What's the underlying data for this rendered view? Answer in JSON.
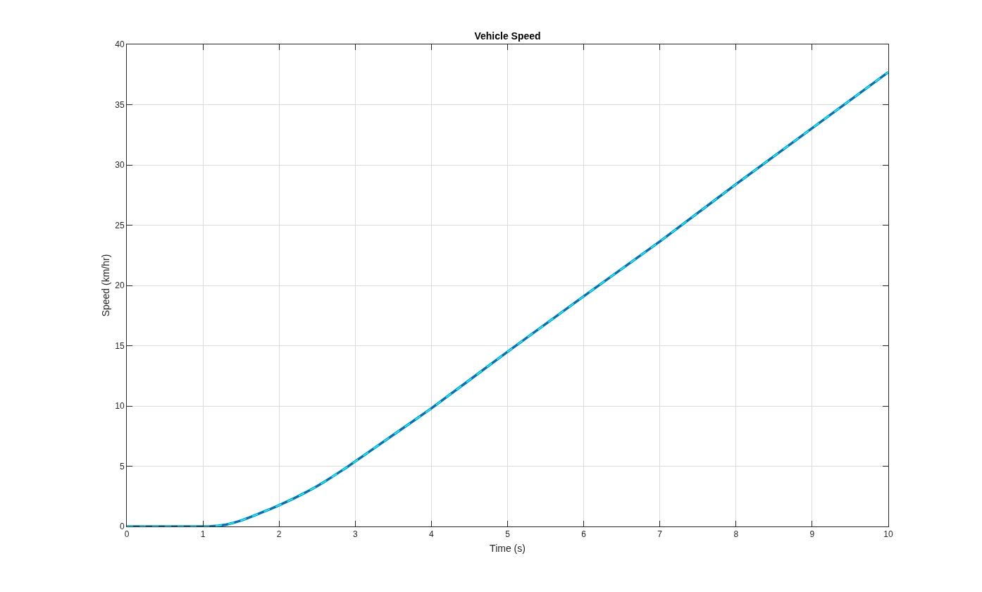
{
  "chart_data": {
    "type": "line",
    "title": "Vehicle Speed",
    "xlabel": "Time (s)",
    "ylabel": "Speed (km/hr)",
    "x": [
      0,
      0.5,
      1.0,
      1.07,
      1.1,
      1.2,
      1.3,
      1.4,
      1.5,
      1.6,
      1.7,
      1.8,
      1.9,
      2.0,
      2.1,
      2.2,
      2.3,
      2.4,
      2.5,
      2.6,
      2.7,
      2.8,
      2.9,
      3.0,
      3.25,
      3.5,
      3.75,
      4.0,
      4.5,
      5.0,
      6.0,
      7.0,
      8.0,
      9.0,
      10.0
    ],
    "series": [
      {
        "color": "#0072bd",
        "line_style": "solid",
        "values": [
          0,
          0,
          0,
          0,
          0.01,
          0.06,
          0.15,
          0.3,
          0.49,
          0.72,
          0.97,
          1.23,
          1.49,
          1.76,
          2.05,
          2.35,
          2.67,
          3.0,
          3.35,
          3.73,
          4.13,
          4.54,
          4.96,
          5.4,
          6.5,
          7.6,
          8.7,
          9.8,
          12.15,
          14.5,
          19.1,
          23.65,
          28.4,
          33.05,
          37.7
        ]
      },
      {
        "color": "#00ffff",
        "line_style": "dashed",
        "values": [
          0,
          0,
          0,
          0,
          0.01,
          0.06,
          0.15,
          0.3,
          0.49,
          0.72,
          0.97,
          1.23,
          1.49,
          1.76,
          2.05,
          2.35,
          2.67,
          3.0,
          3.35,
          3.73,
          4.13,
          4.54,
          4.96,
          5.4,
          6.5,
          7.6,
          8.7,
          9.8,
          12.15,
          14.5,
          19.1,
          23.65,
          28.4,
          33.05,
          37.7
        ]
      }
    ],
    "xlim": [
      0,
      10
    ],
    "ylim": [
      0,
      40
    ],
    "xticks": [
      0,
      1,
      2,
      3,
      4,
      5,
      6,
      7,
      8,
      9,
      10
    ],
    "yticks": [
      0,
      5,
      10,
      15,
      20,
      25,
      30,
      35,
      40
    ],
    "grid": true
  }
}
